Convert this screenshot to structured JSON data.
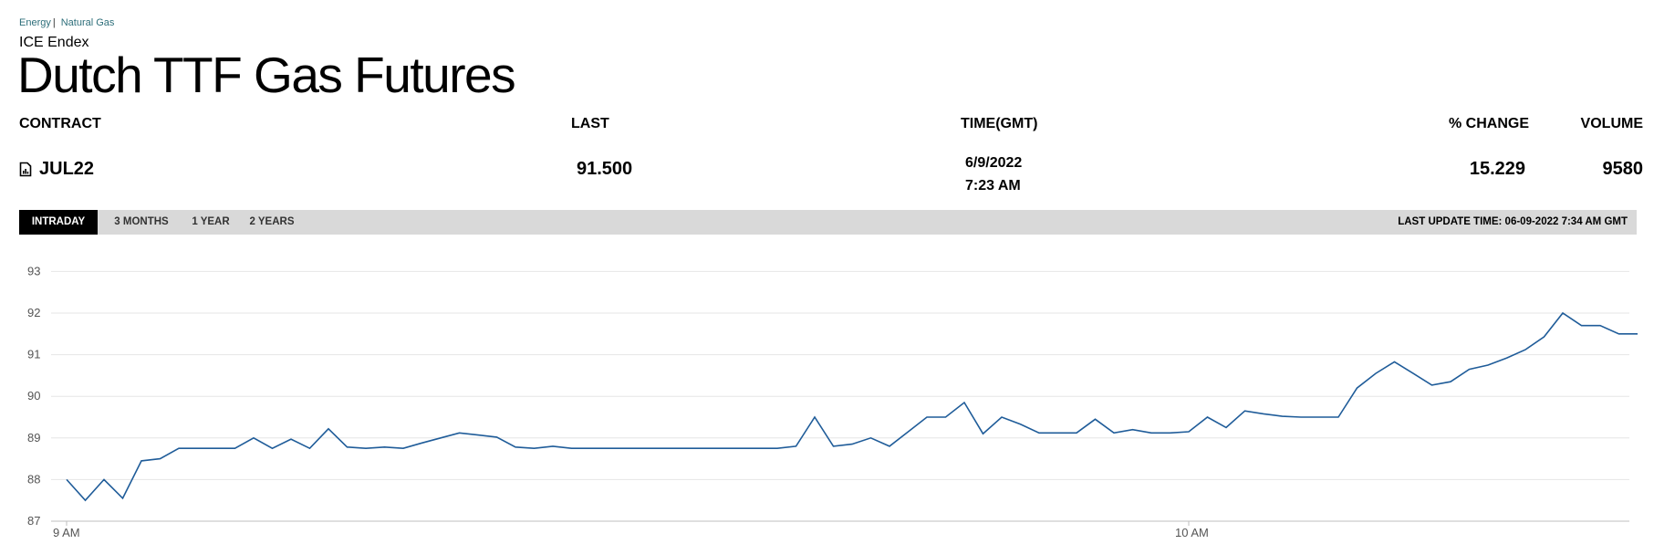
{
  "breadcrumb": {
    "energy": "Energy",
    "separator": "|",
    "natural_gas": "Natural Gas"
  },
  "exchange": "ICE Endex",
  "title": "Dutch TTF Gas Futures",
  "table": {
    "headers": {
      "contract": "CONTRACT",
      "last": "LAST",
      "time": "TIME(GMT)",
      "pct_change": "% CHANGE",
      "volume": "VOLUME"
    },
    "row": {
      "contract": "JUL22",
      "contract_icon": "chart-file-icon",
      "last": "91.500",
      "date": "6/9/2022",
      "time": "7:23 AM",
      "pct_change": "15.229",
      "volume": "9580"
    }
  },
  "tabs": [
    {
      "label": "INTRADAY",
      "active": true
    },
    {
      "label": "3 MONTHS",
      "active": false
    },
    {
      "label": "1 YEAR",
      "active": false
    },
    {
      "label": "2 YEARS",
      "active": false
    }
  ],
  "last_update": "LAST UPDATE TIME: 06-09-2022 7:34 AM GMT",
  "colors": {
    "line": "#1f5c99",
    "grid": "#e6e6e6",
    "tab_bg": "#d9d9d9",
    "tab_active": "#000000"
  },
  "chart_data": {
    "type": "line",
    "xlabel": "",
    "ylabel": "",
    "ylim": [
      87,
      93
    ],
    "yticks": [
      "87",
      "88",
      "89",
      "90",
      "91",
      "92",
      "93"
    ],
    "xticks": [
      {
        "label": "9 AM",
        "index": 0
      },
      {
        "label": "10 AM",
        "index": 60
      }
    ],
    "grid": true,
    "legend": "none",
    "series": [
      {
        "values": [
          88.0,
          87.5,
          88.0,
          87.55,
          88.45,
          88.5,
          88.75,
          88.75,
          88.75,
          88.75,
          89.0,
          88.75,
          88.97,
          88.75,
          89.22,
          88.78,
          88.75,
          88.78,
          88.75,
          88.88,
          89.0,
          89.12,
          89.07,
          89.02,
          88.78,
          88.75,
          88.8,
          88.75,
          88.75,
          88.75,
          88.75,
          88.75,
          88.75,
          88.75,
          88.75,
          88.75,
          88.75,
          88.75,
          88.75,
          88.8,
          89.5,
          88.8,
          88.85,
          89.0,
          88.8,
          89.15,
          89.5,
          89.5,
          89.85,
          89.1,
          89.5,
          89.33,
          89.12,
          89.12,
          89.12,
          89.45,
          89.12,
          89.2,
          89.12,
          89.12,
          89.15,
          89.5,
          89.25,
          89.65,
          89.58,
          89.52,
          89.5,
          89.5,
          89.5,
          90.2,
          90.55,
          90.83,
          90.55,
          90.27,
          90.35,
          90.65,
          90.75,
          90.92,
          91.12,
          91.43,
          92.0,
          91.7,
          91.7,
          91.5,
          91.5
        ]
      }
    ]
  }
}
